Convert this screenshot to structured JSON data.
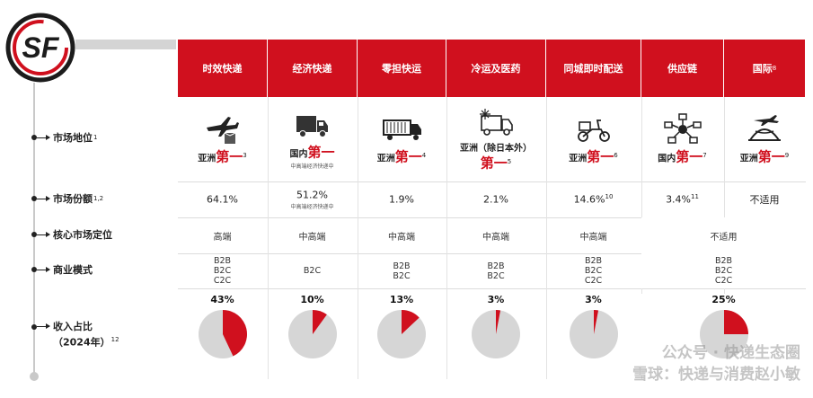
{
  "logo": {
    "icon": "sf-logo-icon",
    "accent": "#d0101e"
  },
  "rows": [
    {
      "label": "市场地位",
      "sup": "1"
    },
    {
      "label": "市场份额",
      "sup": "1,2"
    },
    {
      "label": "核心市场定位",
      "sup": ""
    },
    {
      "label": "商业模式",
      "sup": ""
    },
    {
      "label": "收入占比",
      "label2": "（2024年）",
      "sup": "12"
    }
  ],
  "columns": [
    {
      "name": "时效快递",
      "name_sup": "",
      "icon": "airplane-parcel-icon",
      "pos_pre": "亚洲",
      "pos_big": "第一",
      "pos_sup": "3",
      "pos_sub": "",
      "share": "64.1%",
      "share_sup": "",
      "share_sub": "",
      "core": "高端",
      "models": [
        "B2B",
        "B2C",
        "C2C"
      ],
      "revenue_pct": "43%",
      "revenue_value": 43
    },
    {
      "name": "经济快递",
      "name_sup": "",
      "icon": "truck-icon",
      "pos_pre": "国内",
      "pos_big": "第一",
      "pos_sup": "",
      "pos_sub": "中高端经济快递中",
      "share": "51.2%",
      "share_sup": "",
      "share_sub": "中高端经济快递中",
      "core": "中高端",
      "models": [
        "B2C"
      ],
      "revenue_pct": "10%",
      "revenue_value": 10
    },
    {
      "name": "零担快运",
      "name_sup": "",
      "icon": "container-truck-icon",
      "pos_pre": "亚洲",
      "pos_big": "第一",
      "pos_sup": "4",
      "pos_sub": "",
      "share": "1.9%",
      "share_sup": "",
      "share_sub": "",
      "core": "中高端",
      "models": [
        "B2B",
        "B2C"
      ],
      "revenue_pct": "13%",
      "revenue_value": 13
    },
    {
      "name": "冷运及医药",
      "name_sup": "",
      "icon": "cold-chain-truck-icon",
      "pos_pre": "亚洲（除日本外）",
      "pos_big": "第一",
      "pos_sup": "5",
      "pos_sub": "",
      "share": "2.1%",
      "share_sup": "",
      "share_sub": "",
      "core": "中高端",
      "models": [
        "B2B",
        "B2C"
      ],
      "revenue_pct": "3%",
      "revenue_value": 3
    },
    {
      "name": "同城即时配送",
      "name_sup": "",
      "icon": "scooter-icon",
      "pos_pre": "亚洲",
      "pos_big": "第一",
      "pos_sup": "6",
      "pos_sub": "",
      "share": "14.6%",
      "share_sup": "10",
      "share_sub": "",
      "core": "中高端",
      "models": [
        "B2B",
        "B2C",
        "C2C"
      ],
      "revenue_pct": "3%",
      "revenue_value": 3
    },
    {
      "name": "供应链",
      "name_sup": "",
      "icon": "network-icon",
      "pos_pre": "国内",
      "pos_big": "第一",
      "pos_sup": "7",
      "pos_sub": "",
      "share": "3.4%",
      "share_sup": "11",
      "share_sub": "",
      "core": "不适用",
      "models": [
        "B2B",
        "B2C",
        "C2C"
      ],
      "revenue_pct": "25%",
      "revenue_value": 25
    },
    {
      "name": "国际",
      "name_sup": "8",
      "icon": "globe-plane-icon",
      "pos_pre": "亚洲",
      "pos_big": "第一",
      "pos_sup": "9",
      "pos_sub": "",
      "share": "不适用",
      "share_sup": "",
      "share_sub": "",
      "core": "",
      "models": [],
      "revenue_pct": "",
      "revenue_value": 0
    }
  ],
  "watermark": {
    "line1": "公众号 · 快递生态圈",
    "line2": "雪球：快递与消费赵小敏"
  },
  "colors": {
    "red": "#d0101e",
    "pie_bg": "#d6d6d6"
  }
}
